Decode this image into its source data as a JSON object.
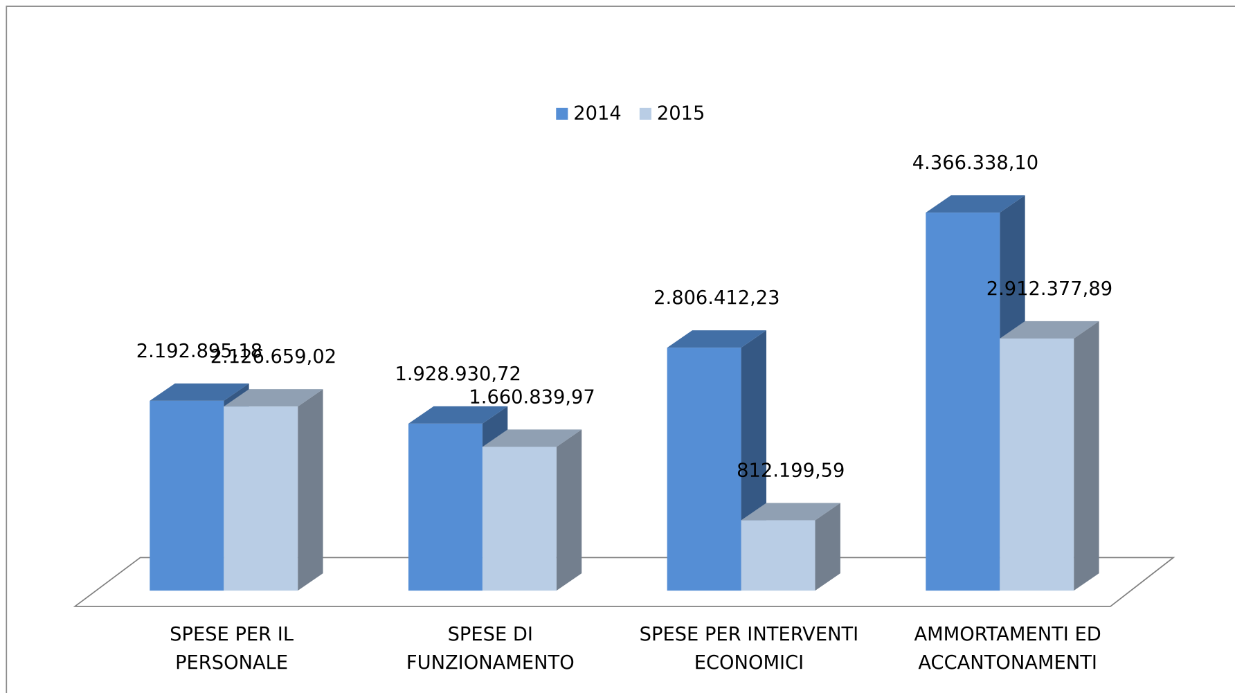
{
  "chart_data": {
    "type": "bar3d",
    "categories": [
      "SPESE PER IL\nPERSONALE",
      "SPESE DI\nFUNZIONAMENTO",
      "SPESE PER INTERVENTI\nECONOMICI",
      "AMMORTAMENTI ED\nACCANTONAMENTI"
    ],
    "series": [
      {
        "name": "2014",
        "color": "#558ed5",
        "values": [
          2192895.18,
          1928930.72,
          2806412.23,
          4366338.1
        ],
        "value_labels": [
          "2.192.895,18",
          "1.928.930,72",
          "2.806.412,23",
          "4.366.338,10"
        ]
      },
      {
        "name": "2015",
        "color": "#b9cde5",
        "values": [
          2126659.02,
          1660839.97,
          812199.59,
          2912377.89
        ],
        "value_labels": [
          "2.126.659,02",
          "1.660.839,97",
          "812.199,59",
          "2.912.377,89"
        ]
      }
    ],
    "legend": "top"
  }
}
